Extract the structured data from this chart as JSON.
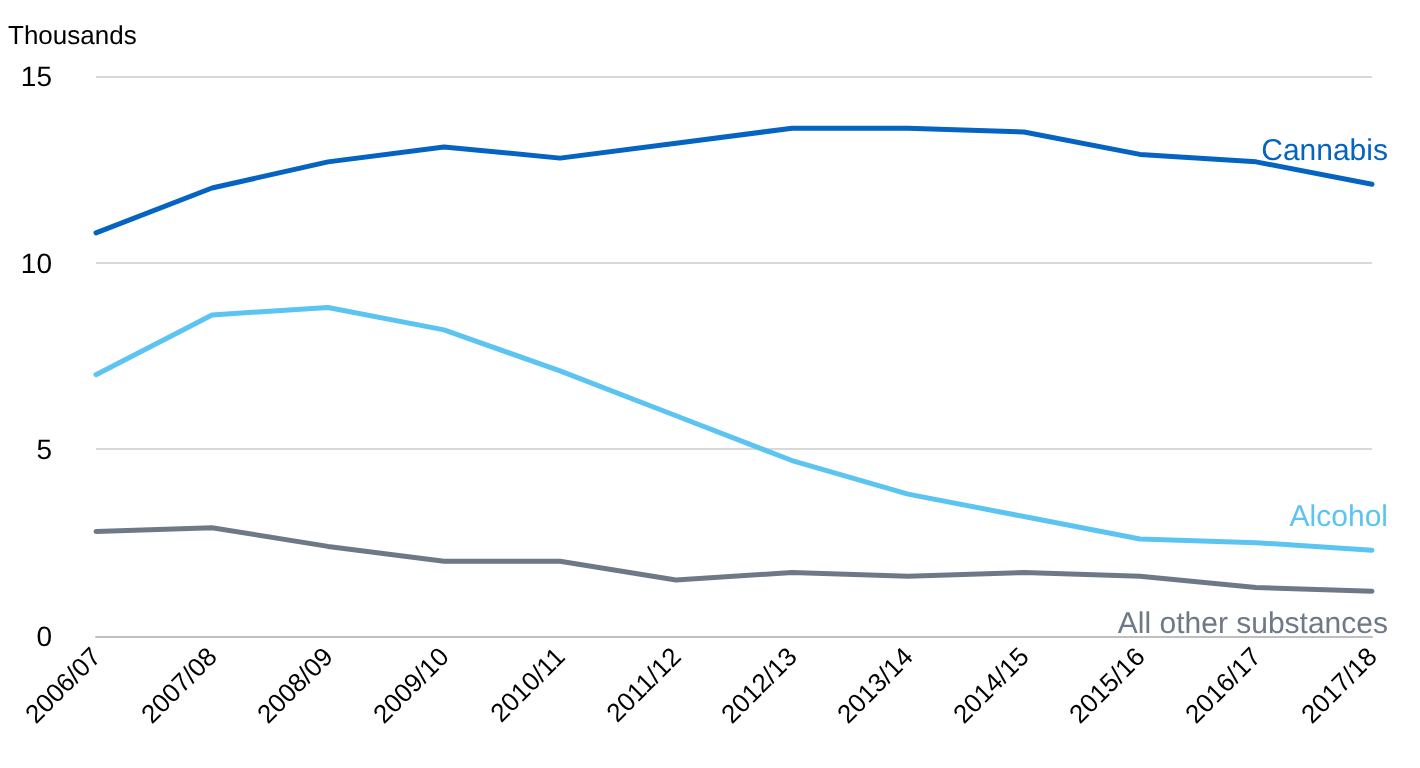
{
  "chart_data": {
    "type": "line",
    "ylabel": "Thousands",
    "categories": [
      "2006/07",
      "2007/08",
      "2008/09",
      "2009/10",
      "2010/11",
      "2011/12",
      "2012/13",
      "2013/14",
      "2014/15",
      "2015/16",
      "2016/17",
      "2017/18"
    ],
    "series": [
      {
        "name": "Cannabis",
        "color": "#0563c1",
        "values": [
          10.8,
          12.0,
          12.7,
          13.1,
          12.8,
          13.2,
          13.6,
          13.6,
          13.5,
          12.9,
          12.7,
          12.1
        ]
      },
      {
        "name": "Alcohol",
        "color": "#5bc4f0",
        "values": [
          7.0,
          8.6,
          8.8,
          8.2,
          7.1,
          5.9,
          4.7,
          3.8,
          3.2,
          2.6,
          2.5,
          2.3
        ]
      },
      {
        "name": "All other substances",
        "color": "#6e7987",
        "values": [
          2.8,
          2.9,
          2.4,
          2.0,
          2.0,
          1.5,
          1.7,
          1.6,
          1.7,
          1.6,
          1.3,
          1.2
        ]
      }
    ],
    "ylim": [
      0,
      15
    ],
    "yticks": [
      0,
      5,
      10,
      15
    ],
    "grid": "y",
    "legend": false,
    "marker": "none",
    "line_style": "solid"
  }
}
